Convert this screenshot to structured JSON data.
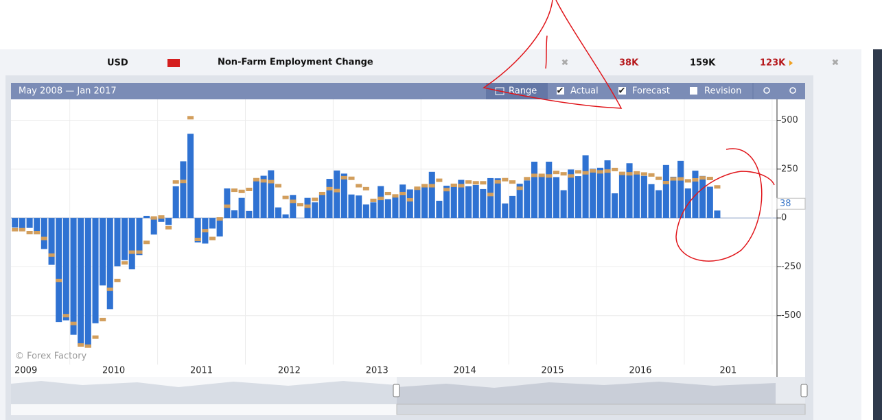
{
  "header": {
    "currency": "USD",
    "event": "Non-Farm Employment Change",
    "actual": "38K",
    "forecast": "159K",
    "previous": "123K"
  },
  "toolbar": {
    "range": "Range",
    "revision": "Revision"
  },
  "watermark": "© Forex Factory",
  "chart_data": {
    "type": "bar",
    "title": "May 2008 — Jan 2017",
    "x": [
      2008.375,
      2008.458,
      2008.542,
      2008.625,
      2008.708,
      2008.792,
      2008.875,
      2008.958,
      2009.042,
      2009.125,
      2009.208,
      2009.292,
      2009.375,
      2009.458,
      2009.542,
      2009.625,
      2009.708,
      2009.792,
      2009.875,
      2009.958,
      2010.042,
      2010.125,
      2010.208,
      2010.292,
      2010.375,
      2010.458,
      2010.542,
      2010.625,
      2010.708,
      2010.792,
      2010.875,
      2010.958,
      2011.042,
      2011.125,
      2011.208,
      2011.292,
      2011.375,
      2011.458,
      2011.542,
      2011.625,
      2011.708,
      2011.792,
      2011.875,
      2011.958,
      2012.042,
      2012.125,
      2012.208,
      2012.292,
      2012.375,
      2012.458,
      2012.542,
      2012.625,
      2012.708,
      2012.792,
      2012.875,
      2012.958,
      2013.042,
      2013.125,
      2013.208,
      2013.292,
      2013.375,
      2013.458,
      2013.542,
      2013.625,
      2013.708,
      2013.792,
      2013.875,
      2013.958,
      2014.042,
      2014.125,
      2014.208,
      2014.292,
      2014.375,
      2014.458,
      2014.542,
      2014.625,
      2014.708,
      2014.792,
      2014.875,
      2014.958,
      2015.042,
      2015.125,
      2015.208,
      2015.292,
      2015.375,
      2015.458,
      2015.542,
      2015.625,
      2015.708,
      2015.792,
      2015.875,
      2015.958,
      2016.042,
      2016.125,
      2016.208,
      2016.292,
      2016.375
    ],
    "series": [
      {
        "name": "Actual",
        "color": "#2f72d2",
        "values": [
          -49,
          -62,
          -51,
          -84,
          -159,
          -240,
          -533,
          -524,
          -598,
          -651,
          -663,
          -539,
          -345,
          -467,
          -247,
          -216,
          -263,
          -190,
          11,
          -85,
          -20,
          -36,
          162,
          290,
          431,
          -125,
          -131,
          -54,
          -95,
          151,
          39,
          103,
          36,
          192,
          216,
          244,
          54,
          18,
          117,
          0,
          103,
          80,
          120,
          200,
          243,
          227,
          120,
          115,
          69,
          80,
          163,
          96,
          114,
          171,
          146,
          155,
          157,
          236,
          88,
          165,
          175,
          195,
          162,
          169,
          148,
          204,
          203,
          74,
          113,
          175,
          192,
          288,
          217,
          288,
          209,
          142,
          248,
          214,
          321,
          252,
          257,
          295,
          126,
          223,
          280,
          223,
          215,
          173,
          142,
          271,
          211,
          292,
          151,
          242,
          215,
          160,
          38
        ]
      },
      {
        "name": "Forecast",
        "color": "#d29e5c",
        "values": [
          -60,
          -60,
          -75,
          -75,
          -105,
          -190,
          -320,
          -500,
          -540,
          -650,
          -656,
          -610,
          -520,
          -365,
          -320,
          -230,
          -175,
          -175,
          -125,
          0,
          5,
          -50,
          184,
          187,
          513,
          -110,
          -65,
          -105,
          -5,
          60,
          142,
          136,
          146,
          196,
          190,
          186,
          165,
          105,
          85,
          68,
          60,
          95,
          125,
          150,
          140,
          206,
          203,
          165,
          150,
          90,
          100,
          125,
          113,
          125,
          93,
          152,
          165,
          165,
          193,
          145,
          167,
          165,
          184,
          180,
          180,
          120,
          185,
          196,
          184,
          152,
          201,
          218,
          218,
          215,
          233,
          226,
          215,
          236,
          231,
          241,
          236,
          240,
          248,
          228,
          226,
          231,
          225,
          220,
          203,
          181,
          200,
          200,
          190,
          195,
          205,
          202,
          159
        ]
      }
    ],
    "xlim": [
      2008.33,
      2017.04
    ],
    "xticks": [
      2009,
      2010,
      2011,
      2012,
      2013,
      2014,
      2015,
      2016,
      {
        "value": 2017,
        "label": "201"
      }
    ],
    "ylim": [
      -750,
      600
    ],
    "yticks": [
      500,
      250,
      0,
      -250,
      -500
    ],
    "grid": true
  }
}
